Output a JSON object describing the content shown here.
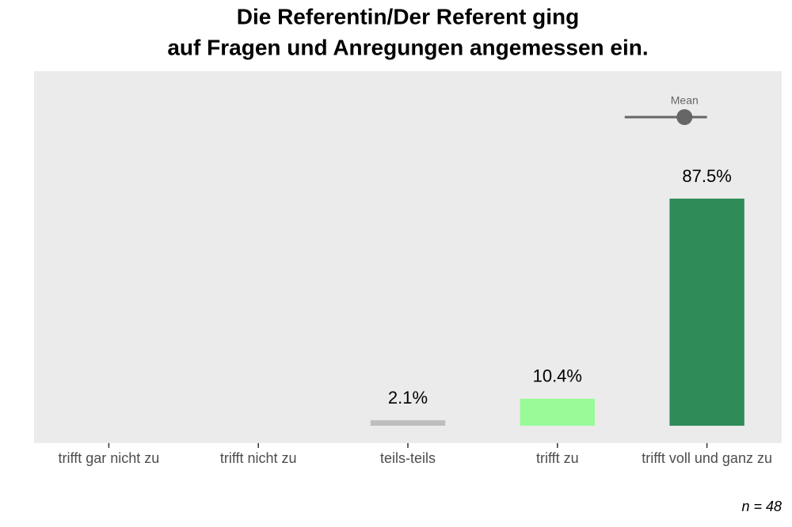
{
  "chart_data": {
    "type": "bar",
    "title": [
      "Die Referentin/Der Referent ging",
      "auf Fragen und Anregungen angemessen ein."
    ],
    "categories": [
      "trifft gar nicht zu",
      "trifft nicht zu",
      "teils-teils",
      "trifft zu",
      "trifft voll und ganz zu"
    ],
    "values": [
      0,
      0,
      2.1,
      10.4,
      87.5
    ],
    "value_labels": [
      null,
      null,
      "2.1%",
      "10.4%",
      "87.5%"
    ],
    "colors": [
      "#bebebe",
      "#bebebe",
      "#bebebe",
      "#98fb98",
      "#2e8b57"
    ],
    "ylim": [
      -6.7,
      136.6
    ],
    "mean": {
      "label": "Mean",
      "value": 4.85,
      "whisker": [
        4.45,
        5
      ]
    },
    "note": "n = 48"
  }
}
